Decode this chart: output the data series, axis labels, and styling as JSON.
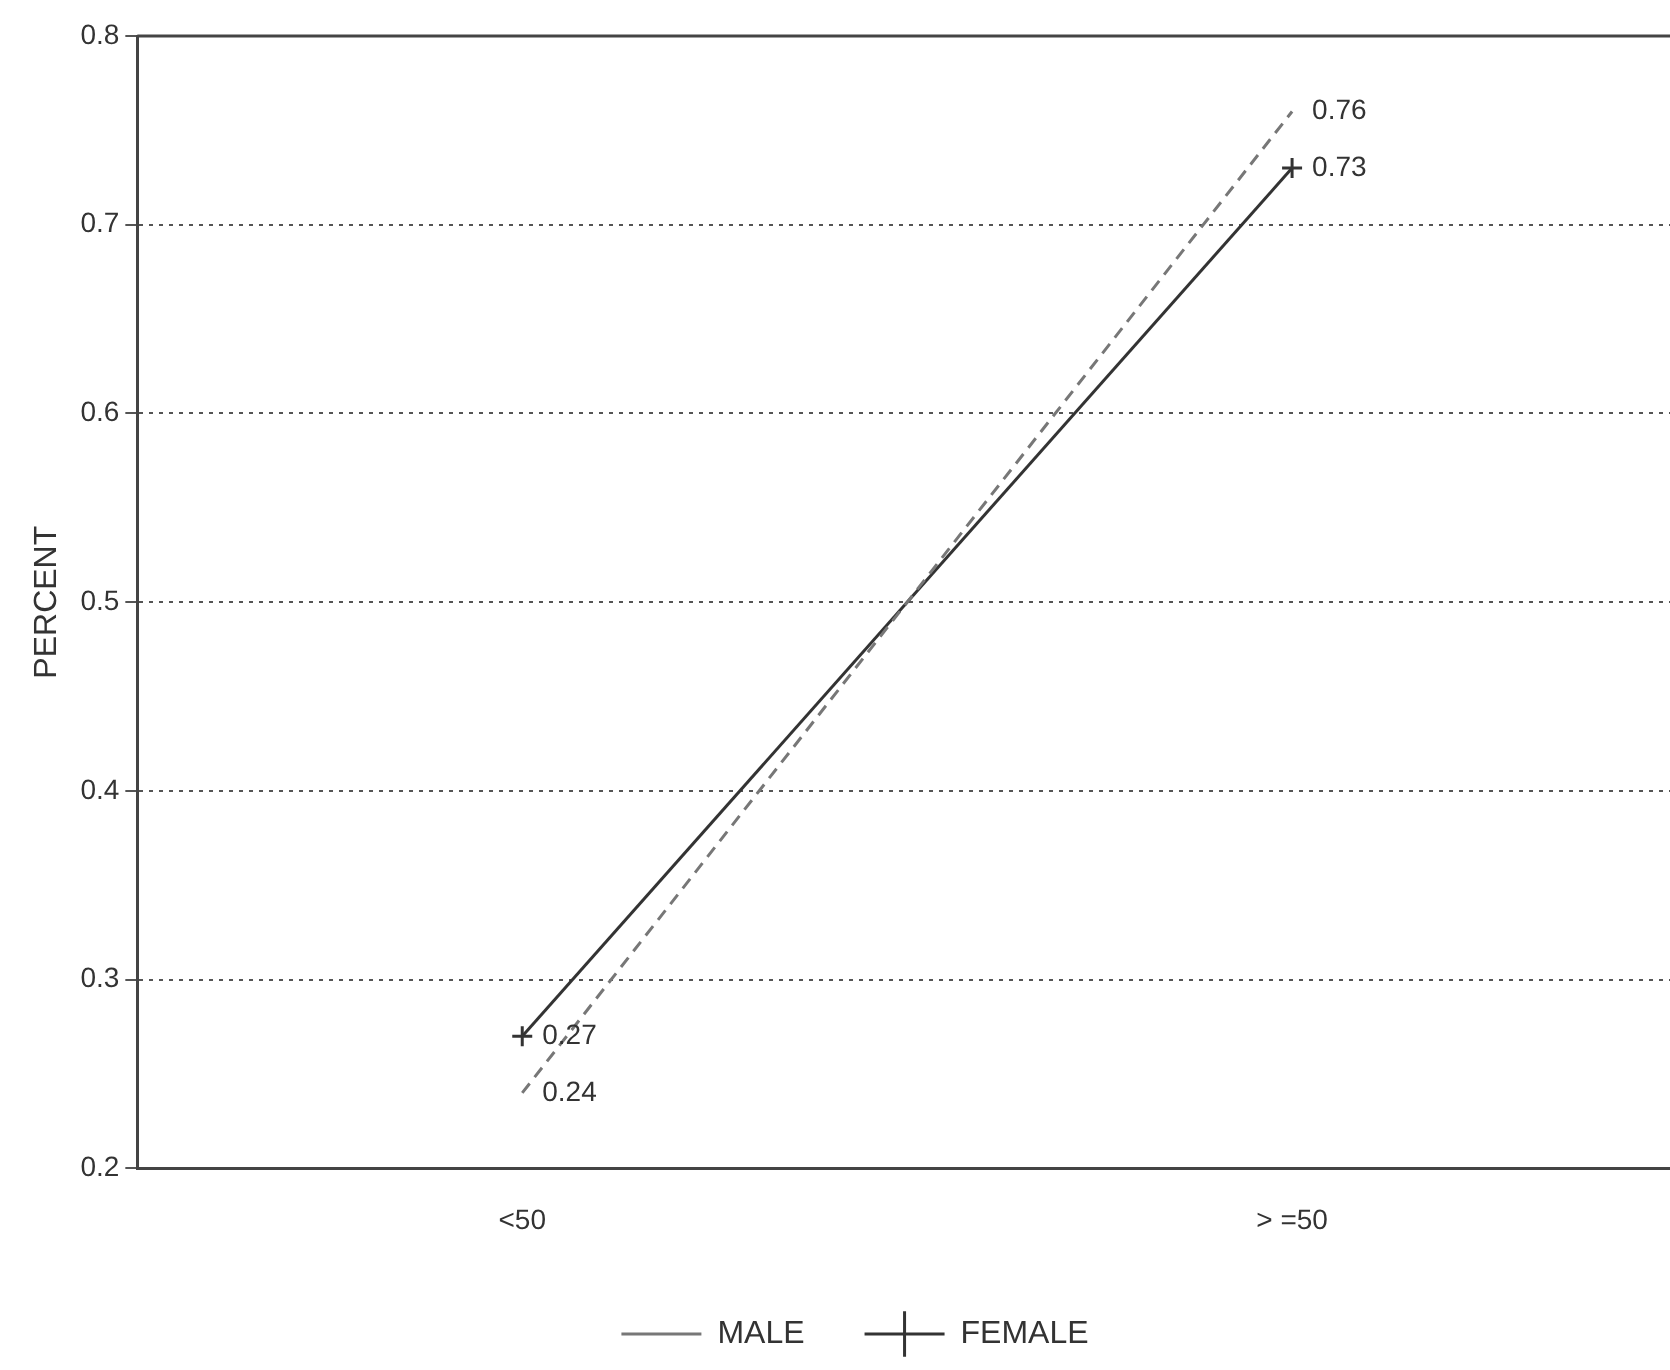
{
  "chart_data": {
    "type": "line",
    "ylabel": "PERCENT",
    "categories": [
      "<50",
      "> =50"
    ],
    "series": [
      {
        "name": "MALE",
        "color": "#777777",
        "values": [
          0.24,
          0.76
        ],
        "line_style": "dashed",
        "marker": "none"
      },
      {
        "name": "FEMALE",
        "color": "#333333",
        "values": [
          0.27,
          0.73
        ],
        "line_style": "solid",
        "marker": "cross"
      }
    ],
    "ylim": [
      0.2,
      0.8
    ],
    "yticks": [
      0.2,
      0.3,
      0.4,
      0.5,
      0.6,
      0.7,
      0.8
    ],
    "grid": "y",
    "legend": "bottom",
    "data_labels": true
  }
}
